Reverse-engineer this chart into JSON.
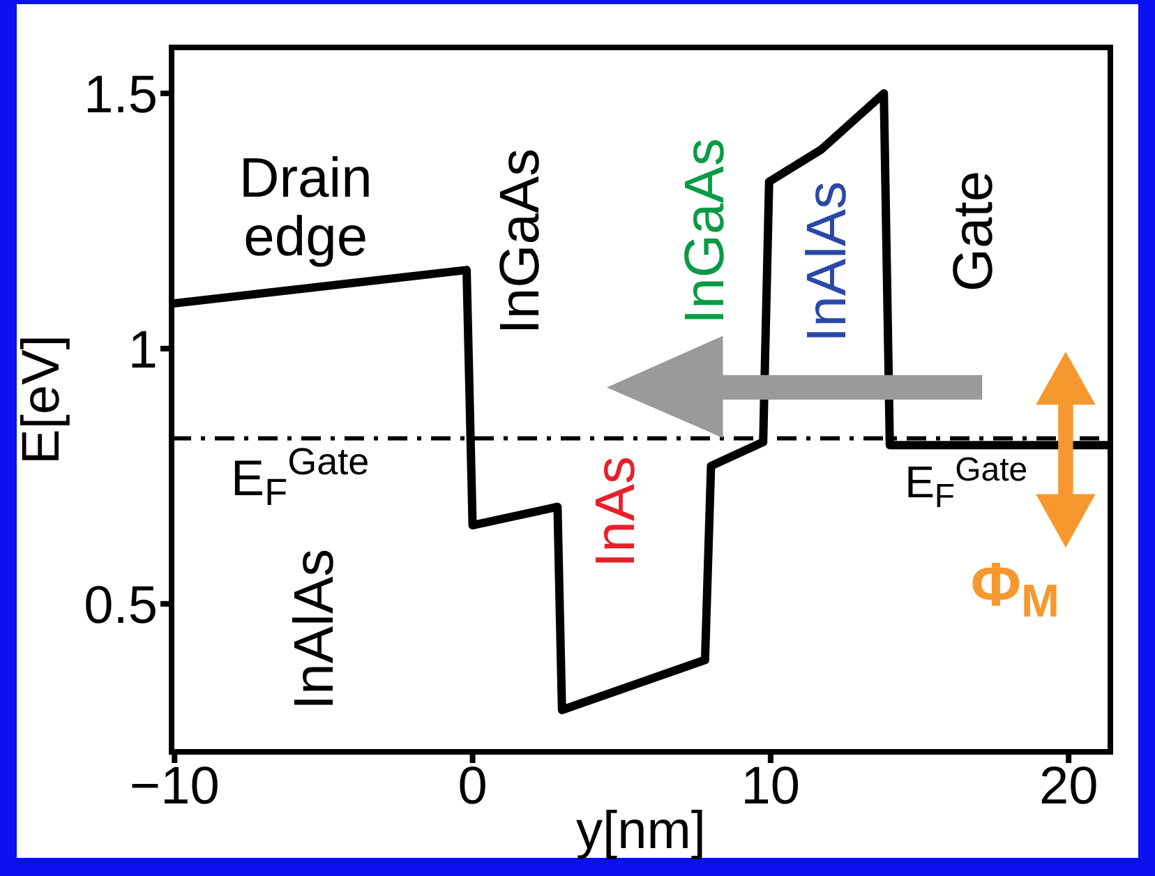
{
  "chart_data": {
    "type": "line",
    "xlabel": "y[nm]",
    "ylabel": "E[eV]",
    "x": [
      -10.1,
      -0.2,
      0,
      2.85,
      3.0,
      7.8,
      8.0,
      9.75,
      9.95,
      11.7,
      13.8,
      14.0,
      21.3
    ],
    "values": [
      1.088,
      1.154,
      0.654,
      0.69,
      0.292,
      0.39,
      0.77,
      0.817,
      1.327,
      1.39,
      1.5,
      0.811,
      0.811
    ],
    "color": "#000000",
    "xlim": [
      -10.1,
      21.4
    ],
    "ylim": [
      0.21,
      1.59
    ],
    "xticks": [
      -10,
      0,
      10,
      20
    ],
    "yticks": [
      0.5,
      1,
      1.5
    ],
    "grid": false,
    "ref_lines": [
      {
        "axis": "y",
        "value": 0.824,
        "line_style": "dashdot",
        "color": "#000000"
      }
    ],
    "annotations": [
      "Drain edge",
      "InGaAs",
      "InGaAs",
      "InAlAs",
      "Gate",
      "E$_{F}$$^{Gate}$",
      "InAs",
      "InAlAs",
      "E$_{F}$$^{Gate}$",
      "Φ$_{M}$"
    ]
  }
}
